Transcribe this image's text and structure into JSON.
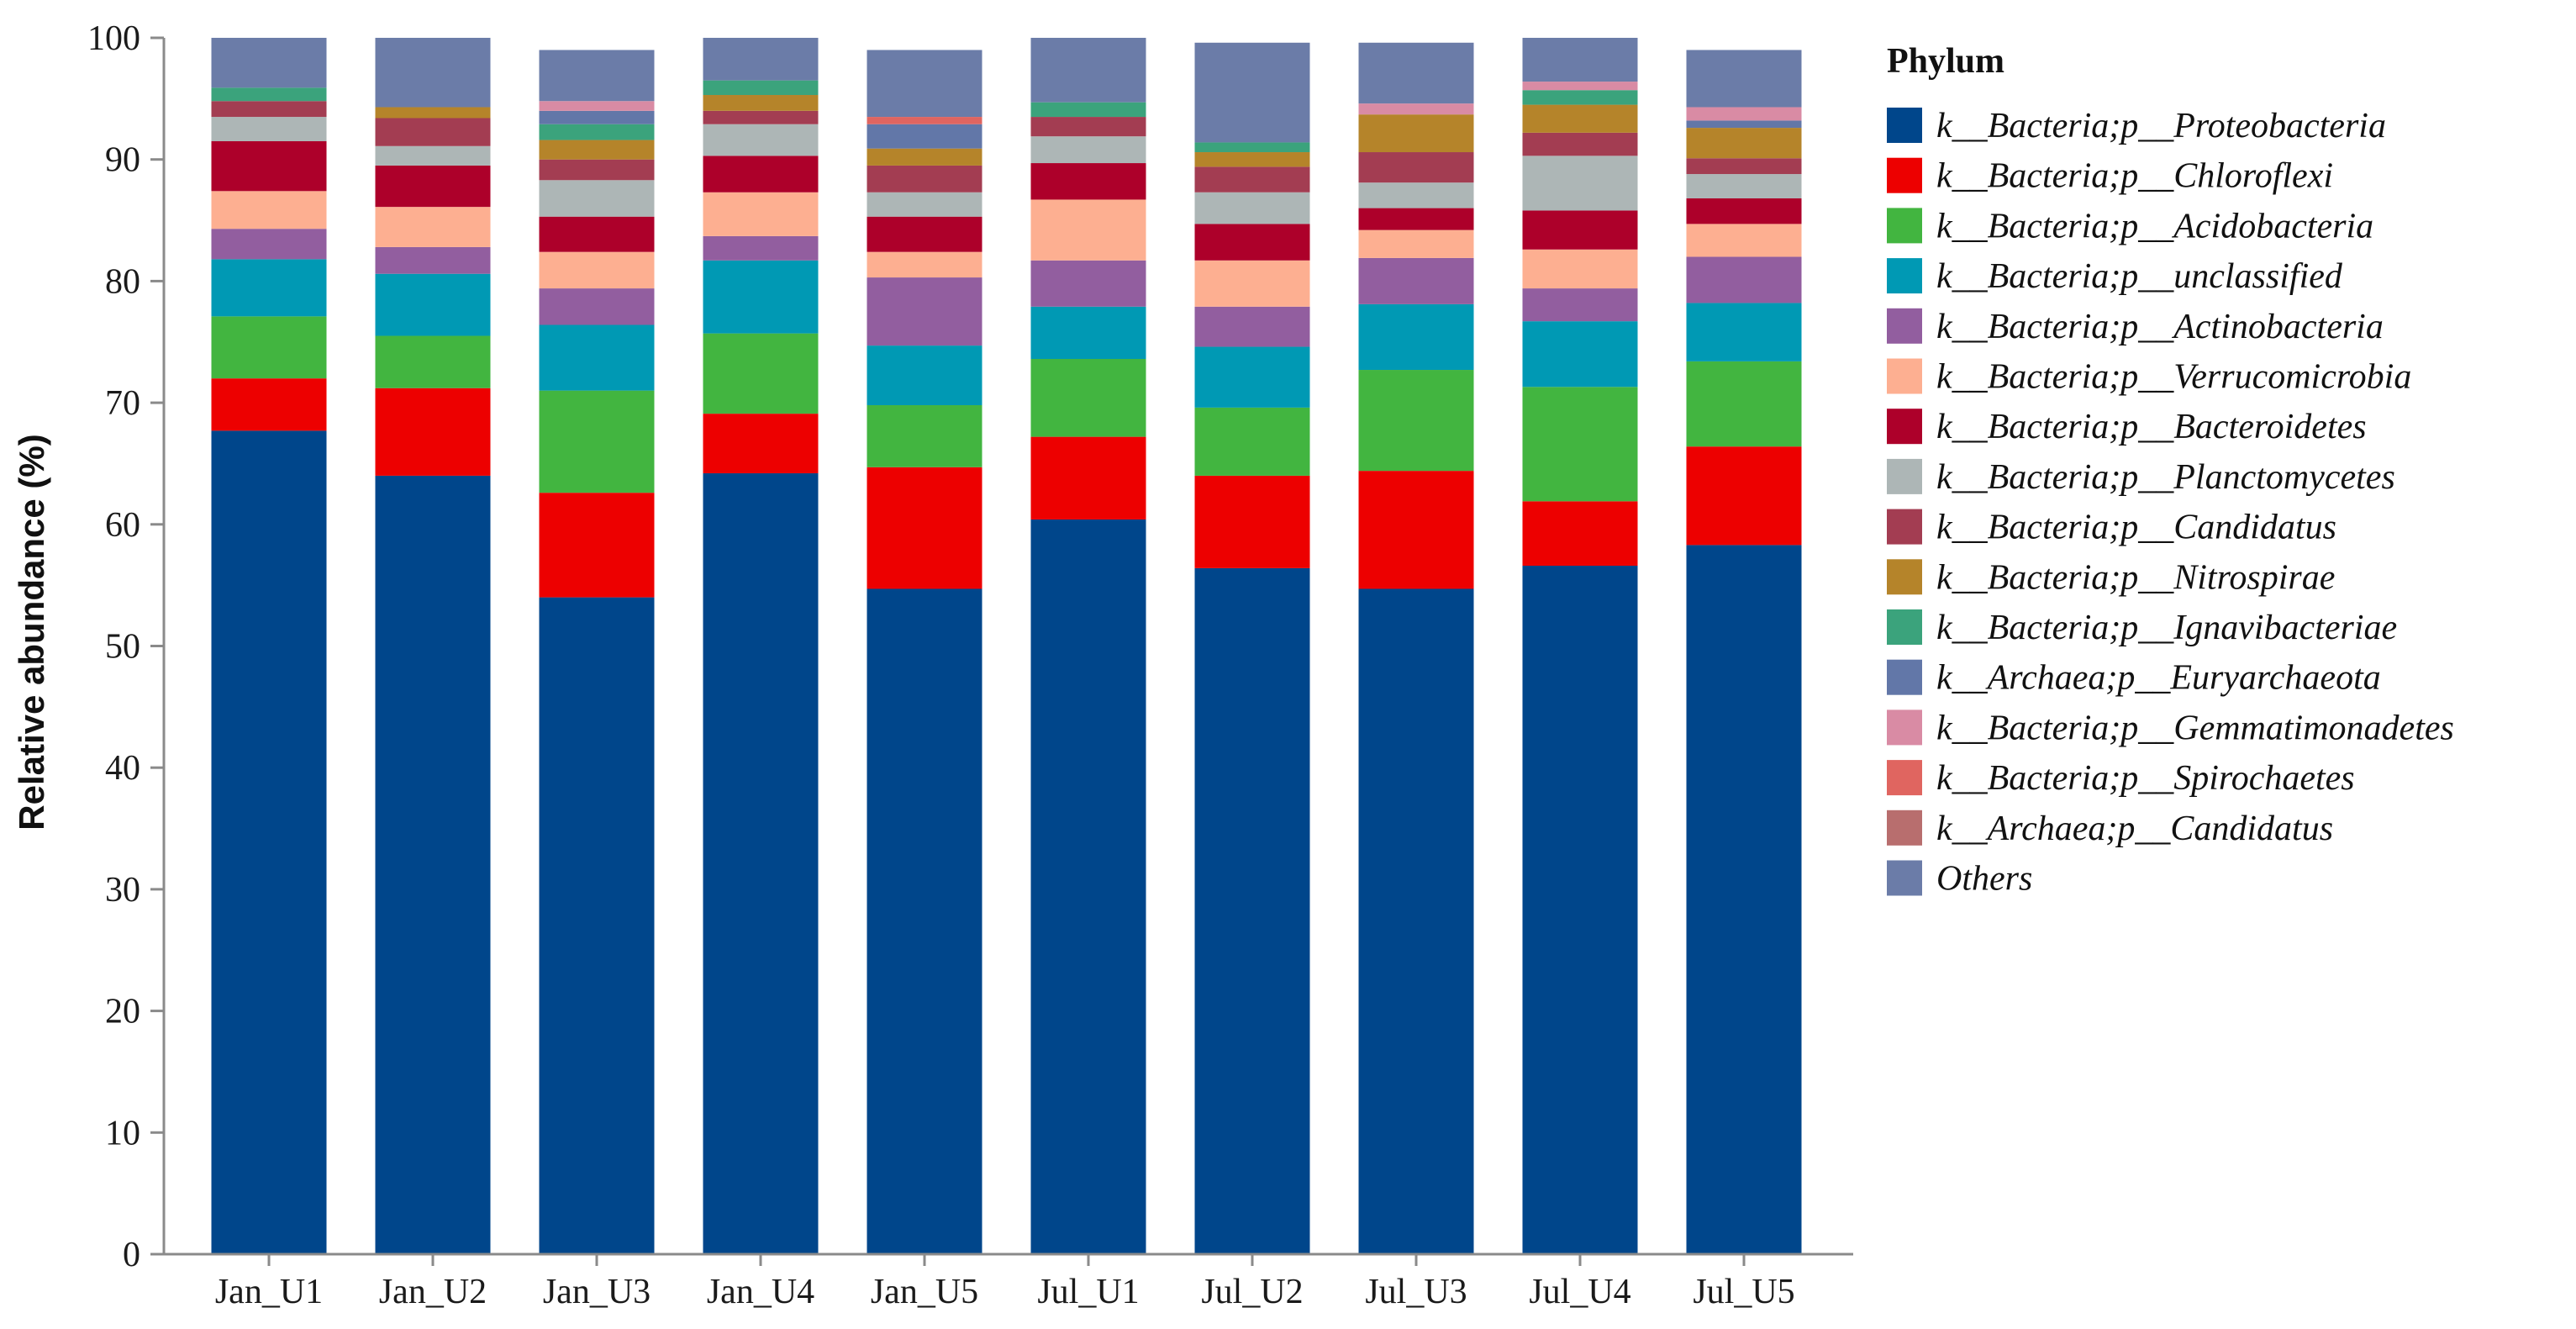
{
  "chart_data": {
    "type": "bar",
    "stacked": true,
    "xlabel": "",
    "ylabel": "Relative abundance (%)",
    "ylim": [
      0,
      100
    ],
    "yticks": [
      0,
      10,
      20,
      30,
      40,
      50,
      60,
      70,
      80,
      90,
      100
    ],
    "grid": false,
    "legend_position": "right",
    "legend_title": "Phylum",
    "categories": [
      "Jan_U1",
      "Jan_U2",
      "Jan_U3",
      "Jan_U4",
      "Jan_U5",
      "Jul_U1",
      "Jul_U2",
      "Jul_U3",
      "Jul_U4",
      "Jul_U5"
    ],
    "series": [
      {
        "name": "k__Bacteria;p__Proteobacteria",
        "color": "#00468b",
        "values": [
          67.7,
          64.0,
          54.0,
          64.2,
          54.7,
          60.4,
          56.4,
          54.7,
          56.6,
          58.3
        ]
      },
      {
        "name": "k__Bacteria;p__Chloroflexi",
        "color": "#ed0000",
        "values": [
          4.3,
          7.2,
          8.6,
          4.9,
          10.0,
          6.8,
          7.6,
          9.7,
          5.3,
          8.1
        ]
      },
      {
        "name": "k__Bacteria;p__Acidobacteria",
        "color": "#42b540",
        "values": [
          5.1,
          4.3,
          8.4,
          6.6,
          5.1,
          6.4,
          5.6,
          8.3,
          9.4,
          7.0
        ]
      },
      {
        "name": "k__Bacteria;p__unclassified",
        "color": "#0099b4",
        "values": [
          4.7,
          5.1,
          5.4,
          6.0,
          4.9,
          4.3,
          5.0,
          5.4,
          5.4,
          4.8
        ]
      },
      {
        "name": "k__Bacteria;p__Actinobacteria",
        "color": "#925e9f",
        "values": [
          2.5,
          2.2,
          3.0,
          2.0,
          5.6,
          3.8,
          3.3,
          3.8,
          2.7,
          3.8
        ]
      },
      {
        "name": "k__Bacteria;p__Verrucomicrobia",
        "color": "#fdaf91",
        "values": [
          3.1,
          3.3,
          3.0,
          3.6,
          2.1,
          5.0,
          3.8,
          2.3,
          3.2,
          2.7
        ]
      },
      {
        "name": "k__Bacteria;p__Bacteroidetes",
        "color": "#ad002a",
        "values": [
          4.1,
          3.4,
          2.9,
          3.0,
          2.9,
          3.0,
          3.0,
          1.8,
          3.2,
          2.1
        ]
      },
      {
        "name": "k__Bacteria;p__Planctomycetes",
        "color": "#adb6b6",
        "values": [
          2.0,
          1.6,
          3.0,
          2.6,
          2.0,
          2.2,
          2.6,
          2.1,
          4.5,
          2.0
        ]
      },
      {
        "name": "k__Bacteria;p__Candidatus",
        "color": "#a33d52",
        "values": [
          1.3,
          2.3,
          1.7,
          1.1,
          2.2,
          1.6,
          2.1,
          2.5,
          1.9,
          1.3
        ]
      },
      {
        "name": "k__Bacteria;p__Nitrospirae",
        "color": "#b5842a",
        "values": [
          0.0,
          0.9,
          1.6,
          1.3,
          1.4,
          0.0,
          1.2,
          3.1,
          2.3,
          2.5
        ]
      },
      {
        "name": "k__Bacteria;p__Ignavibacteriae",
        "color": "#3ba37c",
        "values": [
          1.1,
          0.0,
          1.3,
          1.2,
          0.0,
          1.2,
          0.8,
          0.0,
          1.2,
          0.0
        ]
      },
      {
        "name": "k__Archaea;p__Euryarchaeota",
        "color": "#6277a8",
        "values": [
          0.0,
          0.0,
          1.1,
          0.0,
          2.0,
          0.0,
          0.0,
          0.0,
          0.0,
          0.6
        ]
      },
      {
        "name": "k__Bacteria;p__Gemmatimonadetes",
        "color": "#d98ba4",
        "values": [
          0.0,
          0.0,
          0.8,
          0.0,
          0.0,
          0.0,
          0.0,
          0.9,
          0.7,
          1.1
        ]
      },
      {
        "name": "k__Bacteria;p__Spirochaetes",
        "color": "#e06560",
        "values": [
          0.0,
          0.0,
          0.0,
          0.0,
          0.6,
          0.0,
          0.0,
          0.0,
          0.0,
          0.0
        ]
      },
      {
        "name": "k__Archaea;p__Candidatus",
        "color": "#b86e6e",
        "values": [
          0.0,
          0.0,
          0.0,
          0.0,
          0.0,
          0.0,
          0.0,
          0.0,
          0.0,
          0.0
        ]
      },
      {
        "name": "Others",
        "color": "#6b7ca8",
        "values": [
          4.1,
          5.7,
          4.2,
          3.5,
          5.5,
          5.3,
          8.2,
          5.0,
          3.6,
          4.7
        ]
      }
    ]
  }
}
